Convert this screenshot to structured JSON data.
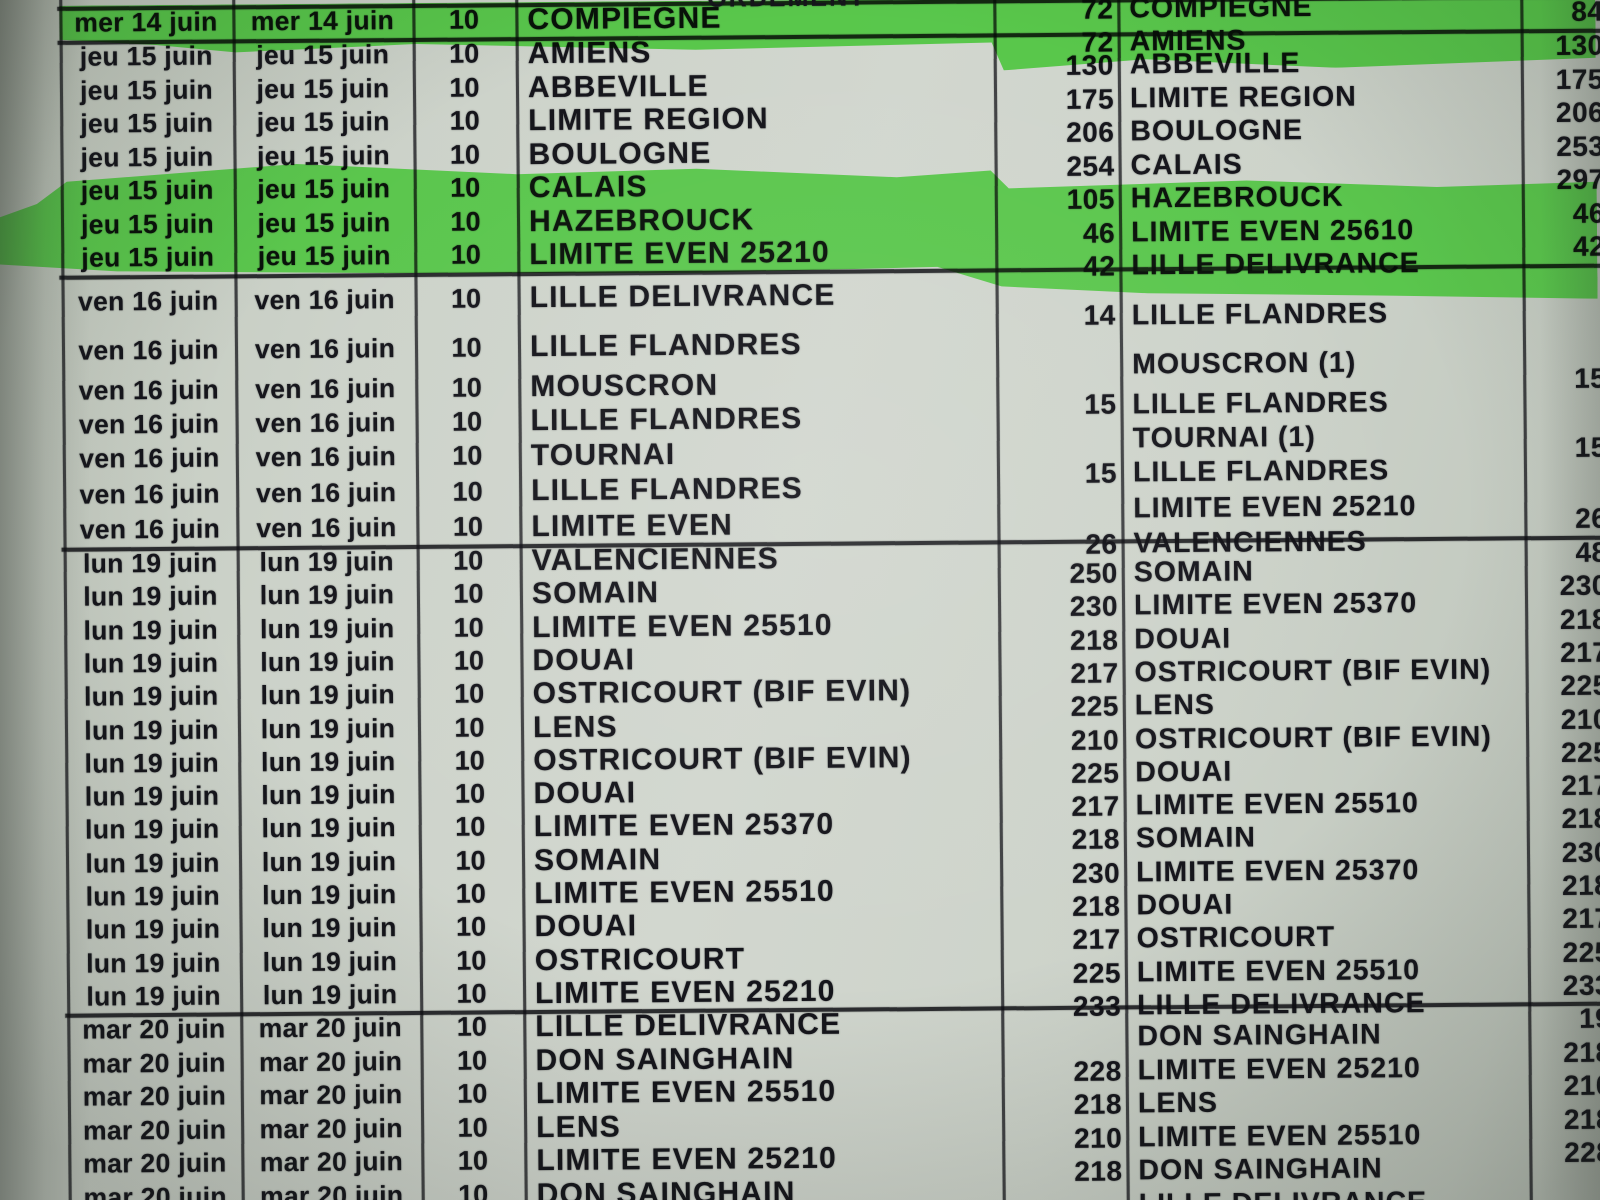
{
  "page": {
    "description": "Photographed railway schedule table page, partially highlighted in green",
    "header_fragment": "ORDEMENT",
    "highlight_color": "#3ec32e",
    "paper_color": "#ccd2c9",
    "ink_color": "#15151b"
  },
  "sections": [
    {
      "date": "mer 14 juin",
      "train": "10",
      "rows": [
        {
          "station": "COMPIEGNE",
          "km": "84"
        }
      ],
      "mid": [
        {
          "km": "72",
          "station": "COMPIEGNE"
        },
        {
          "km": "72",
          "station": "AMIENS"
        }
      ],
      "highlighted": true
    },
    {
      "date": "jeu 15 juin",
      "train": "10",
      "rows": [
        {
          "station": "AMIENS",
          "km": "130"
        },
        {
          "station": "ABBEVILLE",
          "km": "175"
        },
        {
          "station": "LIMITE REGION",
          "km": "206"
        },
        {
          "station": "BOULOGNE",
          "km": "253"
        },
        {
          "station": "CALAIS",
          "km": "297"
        },
        {
          "station": "HAZEBROUCK",
          "km": "46"
        },
        {
          "station": "LIMITE EVEN 25210",
          "km": "42"
        }
      ],
      "mid": [
        {
          "km": "130",
          "station": "ABBEVILLE"
        },
        {
          "km": "175",
          "station": "LIMITE REGION"
        },
        {
          "km": "206",
          "station": "BOULOGNE"
        },
        {
          "km": "254",
          "station": "CALAIS"
        },
        {
          "km": "105",
          "station": "HAZEBROUCK"
        },
        {
          "km": "46",
          "station": "LIMITE EVEN 25610"
        },
        {
          "km": "42",
          "station": "LILLE DELIVRANCE"
        }
      ],
      "highlighted": "rows 5-7 (CALAIS, HAZEBROUCK, LIMITE EVEN 25210)"
    },
    {
      "date": "ven 16 juin",
      "train": "10",
      "rows": [
        {
          "station": "LILLE DELIVRANCE",
          "km": ""
        },
        {
          "station": "LILLE FLANDRES",
          "km": ""
        },
        {
          "station": "MOUSCRON",
          "km": "15"
        },
        {
          "station": "LILLE FLANDRES",
          "km": ""
        },
        {
          "station": "TOURNAI",
          "km": "15"
        },
        {
          "station": "LILLE FLANDRES",
          "km": ""
        },
        {
          "station": "LIMITE EVEN",
          "km": "26"
        }
      ],
      "mid": [
        {
          "km": "14",
          "station": "LILLE FLANDRES"
        },
        {
          "km": "",
          "station": "MOUSCRON  (1)"
        },
        {
          "km": "15",
          "station": "LILLE FLANDRES"
        },
        {
          "km": "",
          "station": "TOURNAI  (1)"
        },
        {
          "km": "15",
          "station": "LILLE FLANDRES"
        },
        {
          "km": "",
          "station": "LIMITE EVEN 25210"
        },
        {
          "km": "26",
          "station": "VALENCIENNES"
        }
      ],
      "highlighted": false
    },
    {
      "date": "lun 19 juin",
      "train": "10",
      "rows": [
        {
          "station": "VALENCIENNES",
          "km": "48"
        },
        {
          "station": "SOMAIN",
          "km": "230"
        },
        {
          "station": "LIMITE EVEN 25510",
          "km": "218"
        },
        {
          "station": "DOUAI",
          "km": "217"
        },
        {
          "station": "OSTRICOURT (BIF EVIN)",
          "km": "225"
        },
        {
          "station": "LENS",
          "km": "210"
        },
        {
          "station": "OSTRICOURT (BIF EVIN)",
          "km": "225"
        },
        {
          "station": "DOUAI",
          "km": "217"
        },
        {
          "station": "LIMITE EVEN 25370",
          "km": "218"
        },
        {
          "station": "SOMAIN",
          "km": "230"
        },
        {
          "station": "LIMITE EVEN 25510",
          "km": "218"
        },
        {
          "station": "DOUAI",
          "km": "217"
        },
        {
          "station": "OSTRICOURT",
          "km": "225"
        },
        {
          "station": "LIMITE EVEN 25210",
          "km": "233"
        }
      ],
      "mid": [
        {
          "km": "250",
          "station": "SOMAIN"
        },
        {
          "km": "230",
          "station": "LIMITE EVEN 25370"
        },
        {
          "km": "218",
          "station": "DOUAI"
        },
        {
          "km": "217",
          "station": "OSTRICOURT (BIF EVIN)"
        },
        {
          "km": "225",
          "station": "LENS"
        },
        {
          "km": "210",
          "station": "OSTRICOURT (BIF EVIN)"
        },
        {
          "km": "225",
          "station": "DOUAI"
        },
        {
          "km": "217",
          "station": "LIMITE EVEN 25510"
        },
        {
          "km": "218",
          "station": "SOMAIN"
        },
        {
          "km": "230",
          "station": "LIMITE EVEN 25370"
        },
        {
          "km": "218",
          "station": "DOUAI"
        },
        {
          "km": "217",
          "station": "OSTRICOURT"
        },
        {
          "km": "225",
          "station": "LIMITE EVEN 25510"
        },
        {
          "km": "233",
          "station": "LILLE DELIVRANCE"
        }
      ],
      "highlighted": false
    },
    {
      "date": "mar 20 juin",
      "train": "10",
      "rows": [
        {
          "station": "LILLE DELIVRANCE",
          "km": "19"
        },
        {
          "station": "DON SAINGHAIN",
          "km": "218"
        },
        {
          "station": "LIMITE EVEN 25510",
          "km": "210"
        },
        {
          "station": "LENS",
          "km": "218"
        },
        {
          "station": "LIMITE EVEN 25210",
          "km": "228"
        },
        {
          "station": "DON SAINGHAIN",
          "km": ""
        }
      ],
      "mid": [
        {
          "km": "",
          "station": "DON SAINGHAIN"
        },
        {
          "km": "228",
          "station": "LIMITE EVEN 25210"
        },
        {
          "km": "218",
          "station": "LENS"
        },
        {
          "km": "210",
          "station": "LIMITE EVEN 25510"
        },
        {
          "km": "218",
          "station": "DON SAINGHAIN"
        },
        {
          "km": "",
          "station": "LILLE DELIVRANCE"
        }
      ],
      "highlighted": false
    }
  ]
}
